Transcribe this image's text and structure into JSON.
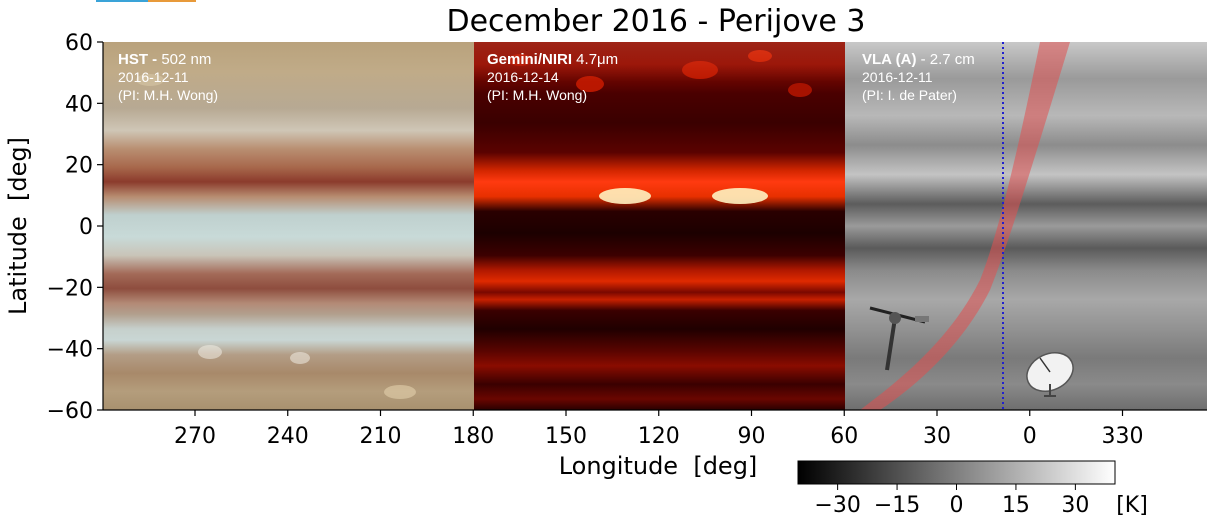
{
  "chart_data": {
    "type": "heatmap",
    "title": "December 2016 - Perijove 3",
    "xlabel": "Longitude  [deg]",
    "ylabel": "Latitude  [deg]",
    "ylim": [
      -60,
      60
    ],
    "yticks": [
      60,
      40,
      20,
      0,
      -20,
      -40,
      -60
    ],
    "xticks": [
      "270",
      "240",
      "210",
      "180",
      "150",
      "120",
      "90",
      "60",
      "30",
      "0",
      "330"
    ],
    "panels": [
      {
        "name": "HST",
        "instrument": "HST - ",
        "detail": " 502 nm",
        "date": "2016-12-11",
        "pi": "(PI: M.H. Wong)",
        "longitude_range": [
          300,
          180
        ]
      },
      {
        "name": "Gemini",
        "instrument": "Gemini/NIRI",
        "detail": " 4.7μm",
        "date": "2016-12-14",
        "pi": "(PI: M.H. Wong)",
        "longitude_range": [
          180,
          60
        ]
      },
      {
        "name": "VLA",
        "instrument": "VLA (A)",
        "detail": " - 2.7 cm",
        "date": "2016-12-11",
        "pi": "(PI: I. de Pater)",
        "longitude_range": [
          60,
          300
        ]
      }
    ],
    "juno_track_longitude": 7,
    "colorbar": {
      "ticks": [
        "−30",
        "−15",
        "0",
        "15",
        "30"
      ],
      "unit": "[K]",
      "range": [
        -40,
        40
      ]
    }
  },
  "colors": {
    "hst_band_dark": "#8b3b2c",
    "hst_zone_light": "#c8d8d6",
    "gemini_base": "#3a0000",
    "gemini_bright": "#ff3a10",
    "vla_base": "#8a8a8a",
    "track_color": "#e05050",
    "juno_line": "#2020d0"
  },
  "icons": [
    "juno-spacecraft-icon",
    "radio-dish-icon"
  ]
}
